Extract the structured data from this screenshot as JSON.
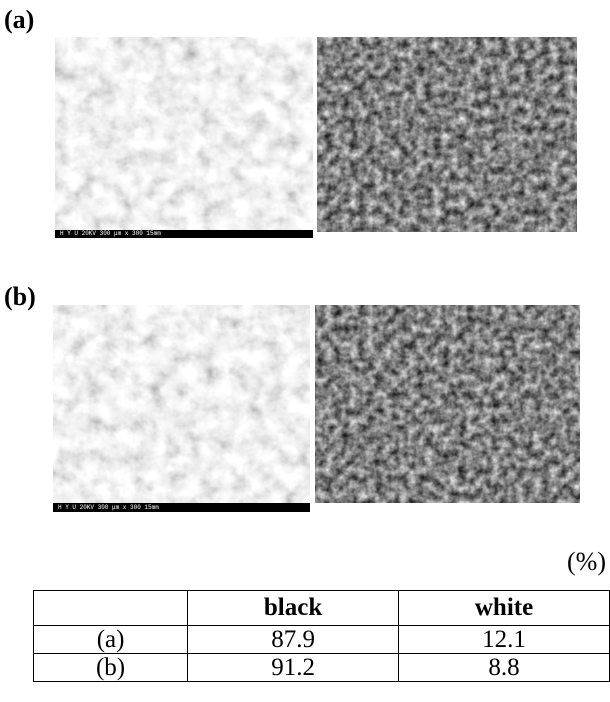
{
  "panels": [
    {
      "label": "(a)",
      "scale_bar": "H Y U  20KV      300 μm   x 300  15mm"
    },
    {
      "label": "(b)",
      "scale_bar": "H Y U  20KV      300 μm   x 300  15mm"
    }
  ],
  "table": {
    "unit": "(%)",
    "header": [
      "",
      "black",
      "white"
    ],
    "rows": [
      [
        "(a)",
        "87.9",
        "12.1"
      ],
      [
        "(b)",
        "91.2",
        "8.8"
      ]
    ]
  }
}
